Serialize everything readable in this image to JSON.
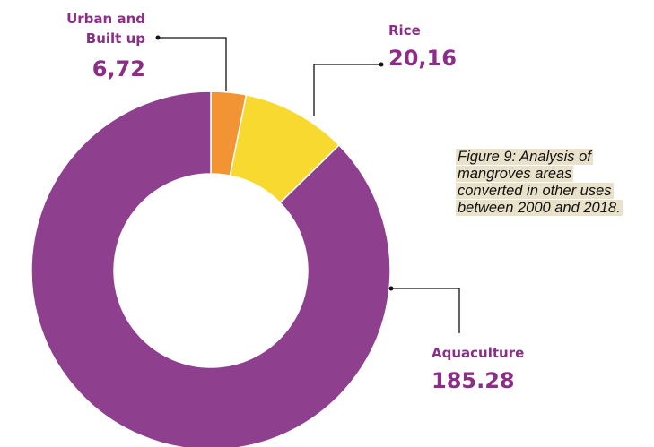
{
  "chart_data": {
    "type": "donut",
    "categories": [
      "Urban and Built up",
      "Rice",
      "Aquaculture"
    ],
    "values": [
      6.72,
      20.16,
      185.28
    ],
    "value_labels": [
      "6,72",
      "20,16",
      "185.28"
    ],
    "colors": [
      "#f29433",
      "#f8d930",
      "#8e3f8d"
    ],
    "caption": "Figure 9: Analysis of mangroves areas converted in other uses between 2000 and 2018."
  }
}
